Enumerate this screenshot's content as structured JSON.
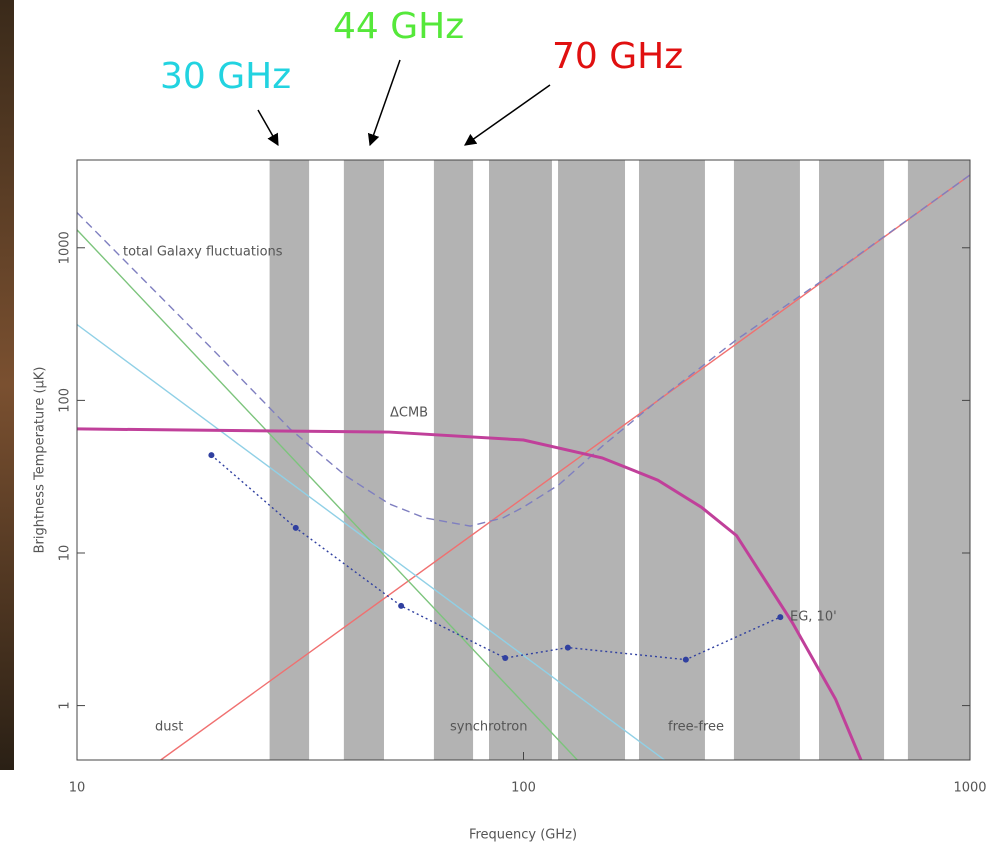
{
  "chart_data": {
    "type": "line",
    "xlabel": "Frequency (GHz)",
    "ylabel": "Brightness Temperature (μK)",
    "xscale": "log",
    "yscale": "log",
    "xlim": [
      10,
      1000
    ],
    "ylim": [
      0.44,
      3760
    ],
    "xticks": [
      10,
      100,
      1000
    ],
    "yticks": [
      1,
      10,
      100,
      1000
    ],
    "band_color": "#b3b3b3",
    "bands": [
      [
        27,
        33.1
      ],
      [
        39.6,
        48.7
      ],
      [
        63,
        77.1
      ],
      [
        83.7,
        115.8
      ],
      [
        119.5,
        168.8
      ],
      [
        181.4,
        254.9
      ],
      [
        296,
        416
      ],
      [
        459,
        642
      ],
      [
        726,
        1000
      ]
    ],
    "band_labels": [
      {
        "name": "30 GHz",
        "color": "#22d3e0"
      },
      {
        "name": "44 GHz",
        "color": "#55e83a"
      },
      {
        "name": "70 GHz",
        "color": "#e01010"
      }
    ],
    "series": [
      {
        "name": "dust",
        "color": "#f07070",
        "x": [
          15.4,
          1000
        ],
        "values": [
          0.44,
          3000
        ]
      },
      {
        "name": "synchrotron",
        "color": "#7cc47c",
        "x": [
          10,
          132
        ],
        "values": [
          1310,
          0.44
        ]
      },
      {
        "name": "free-free",
        "color": "#90d0e6",
        "x": [
          10,
          207
        ],
        "values": [
          314,
          0.44
        ]
      },
      {
        "name": "total Galaxy fluctuations",
        "color": "#7f7fc0",
        "dash": true,
        "x": [
          10,
          20,
          30,
          40,
          50,
          60,
          76,
          90,
          100,
          120,
          150,
          200,
          300,
          500,
          1000
        ],
        "values": [
          1700,
          220,
          65,
          32,
          21,
          17,
          15,
          17,
          20,
          28,
          50,
          100,
          250,
          700,
          3000
        ]
      },
      {
        "name": "ΔCMB",
        "color": "#c0409a",
        "width": 3,
        "x": [
          10,
          50,
          100,
          150,
          200,
          250,
          300,
          400,
          500,
          570
        ],
        "values": [
          65,
          62,
          55,
          42,
          30,
          20,
          13,
          3.5,
          1.1,
          0.44
        ]
      },
      {
        "name": "EG, 10'",
        "color": "#3040a0",
        "dotted": true,
        "markers": true,
        "x": [
          20,
          30.9,
          53.2,
          91,
          125.7,
          231,
          376
        ],
        "values": [
          43.8,
          14.6,
          4.5,
          2.05,
          2.4,
          2.0,
          3.8
        ]
      }
    ]
  }
}
